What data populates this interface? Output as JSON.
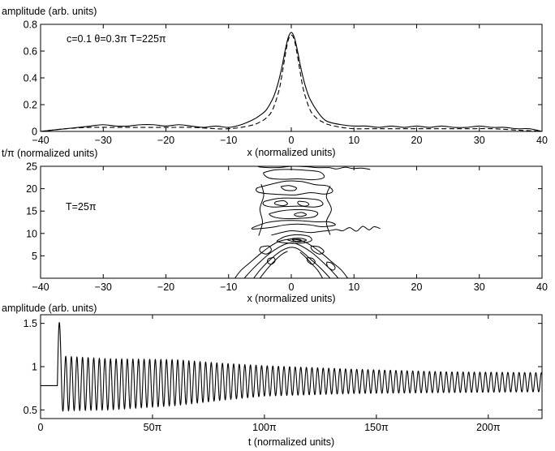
{
  "chart_data": [
    {
      "type": "line",
      "ylabel": "amplitude (arb. units)",
      "xlabel": "x (normalized units)",
      "annotation": "c=0.1   θ=0.3π  T=225π",
      "xlim": [
        -40,
        40
      ],
      "ylim": [
        0,
        0.8
      ],
      "xticks": [
        -40,
        -30,
        -20,
        -10,
        0,
        10,
        20,
        30,
        40
      ],
      "xticklabels": [
        "−40",
        "−30",
        "−20",
        "−10",
        "0",
        "10",
        "20",
        "30",
        "40"
      ],
      "yticks": [
        0,
        0.2,
        0.4,
        0.6,
        0.8
      ],
      "yticklabels": [
        "0",
        "0.2",
        "0.4",
        "0.6",
        "0.8"
      ],
      "series": [
        {
          "style": "solid",
          "x": [
            -40,
            -38,
            -36,
            -34,
            -32,
            -30,
            -28,
            -26,
            -24,
            -22,
            -20,
            -18,
            -16,
            -14,
            -12,
            -10,
            -8,
            -6,
            -5,
            -4,
            -3,
            -2.5,
            -2,
            -1.5,
            -1,
            -0.5,
            0,
            0.5,
            1,
            1.5,
            2,
            2.5,
            3,
            4,
            5,
            6,
            8,
            10,
            12,
            14,
            16,
            18,
            20,
            22,
            24,
            26,
            28,
            30,
            32,
            34,
            36,
            38,
            40
          ],
          "y": [
            0.0,
            0.01,
            0.02,
            0.03,
            0.04,
            0.05,
            0.04,
            0.04,
            0.05,
            0.05,
            0.04,
            0.05,
            0.04,
            0.03,
            0.04,
            0.03,
            0.05,
            0.09,
            0.12,
            0.16,
            0.24,
            0.3,
            0.38,
            0.48,
            0.6,
            0.7,
            0.74,
            0.7,
            0.6,
            0.48,
            0.38,
            0.3,
            0.24,
            0.16,
            0.1,
            0.07,
            0.05,
            0.04,
            0.04,
            0.03,
            0.04,
            0.03,
            0.04,
            0.03,
            0.04,
            0.03,
            0.03,
            0.04,
            0.03,
            0.03,
            0.02,
            0.02,
            0.0
          ]
        },
        {
          "style": "dashed",
          "x": [
            -40,
            -36,
            -32,
            -28,
            -24,
            -20,
            -16,
            -12,
            -10,
            -8,
            -6,
            -5,
            -4,
            -3,
            -2,
            -1.5,
            -1,
            -0.5,
            0,
            0.5,
            1,
            1.5,
            2,
            3,
            4,
            5,
            6,
            8,
            10,
            12,
            16,
            20,
            24,
            28,
            32,
            36,
            40
          ],
          "y": [
            0.0,
            0.02,
            0.03,
            0.03,
            0.03,
            0.03,
            0.03,
            0.02,
            0.02,
            0.03,
            0.05,
            0.07,
            0.1,
            0.16,
            0.3,
            0.42,
            0.56,
            0.68,
            0.72,
            0.68,
            0.56,
            0.42,
            0.3,
            0.16,
            0.1,
            0.07,
            0.05,
            0.03,
            0.02,
            0.02,
            0.02,
            0.02,
            0.02,
            0.02,
            0.02,
            0.01,
            0.0
          ]
        }
      ]
    },
    {
      "type": "heatmap",
      "subtype": "contour",
      "ylabel": "t/π (normalized units)",
      "xlabel": "x (normalized units)",
      "annotation": "T=25π",
      "xlim": [
        -40,
        40
      ],
      "ylim": [
        0,
        25
      ],
      "xticks": [
        -40,
        -30,
        -20,
        -10,
        0,
        10,
        20,
        30,
        40
      ],
      "xticklabels": [
        "−40",
        "−30",
        "−20",
        "−10",
        "0",
        "10",
        "20",
        "30",
        "40"
      ],
      "yticks": [
        5,
        10,
        15,
        20,
        25
      ],
      "yticklabels": [
        "5",
        "10",
        "15",
        "20",
        "25"
      ],
      "contours": [
        {
          "closed": false,
          "x": [
            -9,
            -8,
            -6.5,
            -5,
            -3.5,
            -2,
            -0.5,
            0.5,
            2,
            3.5,
            5,
            6.5,
            8,
            9
          ],
          "y": [
            0,
            1.8,
            3.6,
            5.4,
            7.0,
            8.2,
            8.7,
            8.7,
            8.2,
            7.0,
            5.4,
            3.6,
            1.8,
            0
          ]
        },
        {
          "closed": false,
          "x": [
            -7.5,
            -6.2,
            -4.8,
            -3.4,
            -2,
            -0.8,
            0,
            0.8,
            2,
            3.4,
            4.8,
            6.2,
            7.5
          ],
          "y": [
            0,
            2.0,
            3.9,
            5.6,
            6.9,
            7.7,
            7.9,
            7.7,
            6.9,
            5.6,
            3.9,
            2.0,
            0
          ]
        },
        {
          "closed": false,
          "x": [
            -6,
            -5,
            -3.8,
            -2.6,
            -1.5,
            -0.5,
            0.2,
            1,
            2,
            3.2,
            4.4,
            5.4,
            6.2
          ],
          "y": [
            0,
            1.8,
            3.6,
            5.1,
            6.2,
            6.8,
            6.9,
            6.6,
            5.6,
            4.1,
            2.6,
            1.2,
            0
          ]
        },
        {
          "closed": false,
          "x": [
            -5,
            -4.3,
            -3.4,
            -2.5,
            -1.8,
            -1.2,
            -0.6
          ],
          "y": [
            0,
            1.3,
            2.8,
            4.1,
            5.0,
            5.6,
            6.0
          ]
        },
        {
          "closed": false,
          "x": [
            1.4,
            2.2,
            3.2,
            4.2,
            5.0
          ],
          "y": [
            5.8,
            4.8,
            3.3,
            1.8,
            0
          ]
        },
        {
          "closed": true,
          "x": [
            -2,
            -1,
            0.5,
            2,
            3,
            3.2,
            2,
            0.5,
            -1,
            -2.2
          ],
          "y": [
            8.6,
            9.3,
            9.7,
            9.6,
            9.2,
            8.4,
            7.9,
            7.8,
            7.9,
            8.2
          ]
        },
        {
          "closed": true,
          "x": [
            -0.6,
            0.4,
            1.6,
            2.4,
            1.6,
            0.4
          ],
          "y": [
            8.6,
            8.9,
            8.9,
            8.5,
            8.2,
            8.2
          ]
        },
        {
          "closed": true,
          "x": [
            0.2,
            0.8,
            1.5,
            1.4,
            0.6
          ],
          "y": [
            8.6,
            8.7,
            8.6,
            8.3,
            8.3
          ]
        },
        {
          "closed": true,
          "x": [
            -4.8,
            -3.6,
            -3.2,
            -4.0,
            -5.0
          ],
          "y": [
            7.0,
            7.2,
            6.2,
            5.4,
            6.0
          ]
        },
        {
          "closed": true,
          "x": [
            3.2,
            4.4,
            5.2,
            4.5,
            3.4
          ],
          "y": [
            7.2,
            7.0,
            6.0,
            5.4,
            6.2
          ]
        },
        {
          "closed": true,
          "x": [
            -3.6,
            -2.8,
            -2.6,
            -3.2,
            -3.8
          ],
          "y": [
            4.4,
            4.6,
            3.8,
            3.1,
            3.6
          ]
        },
        {
          "closed": true,
          "x": [
            2.6,
            3.4,
            3.8,
            3.3,
            2.6
          ],
          "y": [
            4.6,
            4.4,
            3.6,
            3.1,
            3.8
          ]
        },
        {
          "closed": true,
          "x": [
            5.7,
            6.4,
            7.0,
            6.6,
            5.8
          ],
          "y": [
            3.6,
            3.4,
            2.4,
            1.8,
            2.6
          ]
        },
        {
          "closed": false,
          "x": [
            -3.2,
            -1.6,
            0,
            1.6,
            3.2,
            5,
            6.4,
            7.2,
            8.2,
            9.3,
            10.4,
            11.4,
            12.4,
            13.2,
            14.2
          ],
          "y": [
            9.6,
            10.2,
            10.6,
            10.4,
            10.2,
            10.5,
            10.7,
            10.9,
            10.6,
            11.3,
            10.5,
            11.6,
            10.8,
            11.5,
            11.1
          ]
        },
        {
          "closed": true,
          "x": [
            -6,
            -4,
            -2,
            0,
            2,
            4,
            6,
            7,
            5,
            3,
            1,
            -1,
            -3,
            -5,
            -6.2
          ],
          "y": [
            11.4,
            12.4,
            12.8,
            12.9,
            12.8,
            12.6,
            12.6,
            11.9,
            11.5,
            11.9,
            12.1,
            11.9,
            11.4,
            11.1,
            11.0
          ]
        },
        {
          "closed": true,
          "x": [
            -3.5,
            -1.8,
            0.5,
            2.8,
            4.2,
            3.6,
            1.6,
            -0.6,
            -2.6
          ],
          "y": [
            14.4,
            15.0,
            15.3,
            15.2,
            14.6,
            13.7,
            13.4,
            13.3,
            13.6
          ]
        },
        {
          "closed": true,
          "x": [
            0.6,
            1.6,
            2.4,
            1.5,
            0.6
          ],
          "y": [
            14.4,
            14.7,
            14.2,
            13.8,
            14.0
          ]
        },
        {
          "closed": true,
          "x": [
            -4.2,
            -2.2,
            0,
            2.4,
            4.5,
            5.0,
            3.6,
            1.2,
            -1.2,
            -3.0,
            -4.4
          ],
          "y": [
            17.2,
            17.8,
            17.9,
            17.8,
            17.4,
            16.4,
            15.9,
            16.1,
            16.0,
            15.9,
            16.4
          ]
        },
        {
          "closed": true,
          "x": [
            -2.4,
            -1.2,
            -0.6,
            -1.4,
            -2.6
          ],
          "y": [
            17.1,
            17.3,
            16.6,
            16.2,
            16.6
          ]
        },
        {
          "closed": true,
          "x": [
            1.2,
            2.4,
            2.8,
            2.0,
            1.1
          ],
          "y": [
            17.2,
            17.0,
            16.4,
            16.1,
            16.6
          ]
        },
        {
          "closed": false,
          "x": [
            -5.2,
            -4.6,
            -5.0,
            -4.4,
            -4.8
          ],
          "y": [
            9.5,
            12.5,
            15.5,
            18.5,
            21.0
          ]
        },
        {
          "closed": false,
          "x": [
            6.2,
            5.6,
            6.4,
            5.6,
            6.2
          ],
          "y": [
            9.7,
            12.6,
            15.4,
            18.2,
            20.6
          ]
        },
        {
          "closed": true,
          "x": [
            -5.4,
            -3.2,
            -0.8,
            1.6,
            3.8,
            5.8,
            6.6,
            5.4,
            3.0,
            0.6,
            -1.8,
            -4.0,
            -5.4
          ],
          "y": [
            20.2,
            21.0,
            21.7,
            21.6,
            20.9,
            20.6,
            19.4,
            18.8,
            19.1,
            18.6,
            18.7,
            18.9,
            19.3
          ]
        },
        {
          "closed": true,
          "x": [
            -1.6,
            -0.4,
            0.8,
            0.4,
            -1.0
          ],
          "y": [
            20.5,
            20.7,
            20.2,
            19.6,
            19.7
          ]
        },
        {
          "closed": true,
          "x": [
            -4.4,
            -2.6,
            -0.2,
            2.4,
            4.6,
            5.2,
            3.4,
            1.0,
            -1.4,
            -3.6
          ],
          "y": [
            23.6,
            24.2,
            24.3,
            24.1,
            23.7,
            22.5,
            22.0,
            22.2,
            22.1,
            22.4
          ]
        },
        {
          "closed": false,
          "x": [
            -5.4,
            -4.8,
            -2.4,
            0.2,
            2.4,
            4.2,
            6.0,
            7.2,
            8.6,
            9.8,
            11.2,
            12.6
          ],
          "y": [
            25,
            24.8,
            24.7,
            25,
            24.9,
            24.7,
            24.7,
            24.4,
            24.8,
            24.5,
            24.6,
            24.3
          ]
        }
      ]
    },
    {
      "type": "line",
      "ylabel": "amplitude (arb. units)",
      "xlabel": "t (normalized units)",
      "xlim": [
        0,
        224
      ],
      "ylim": [
        0.4,
        1.6
      ],
      "xticks": [
        0,
        50,
        100,
        150,
        200
      ],
      "xticklabels": [
        "0",
        "50π",
        "100π",
        "150π",
        "200π"
      ],
      "yticks": [
        0.5,
        1,
        1.5
      ],
      "yticklabels": [
        "0.5",
        "1",
        "1.5"
      ],
      "series": [
        {
          "style": "solid",
          "model": "damped-oscillation",
          "baseline": 0.78,
          "onset": 7.5,
          "period": 2.5,
          "first_peak": 1.51,
          "first_trough": 0.48,
          "max_envelope": [
            [
              10,
              1.12
            ],
            [
              30,
              1.09
            ],
            [
              60,
              1.08
            ],
            [
              80,
              1.04
            ],
            [
              100,
              1.01
            ],
            [
              140,
              0.97
            ],
            [
              180,
              0.94
            ],
            [
              224,
              0.93
            ]
          ],
          "min_envelope": [
            [
              10,
              0.49
            ],
            [
              30,
              0.5
            ],
            [
              60,
              0.55
            ],
            [
              80,
              0.61
            ],
            [
              100,
              0.66
            ],
            [
              140,
              0.69
            ],
            [
              180,
              0.7
            ],
            [
              224,
              0.71
            ]
          ]
        }
      ]
    }
  ]
}
